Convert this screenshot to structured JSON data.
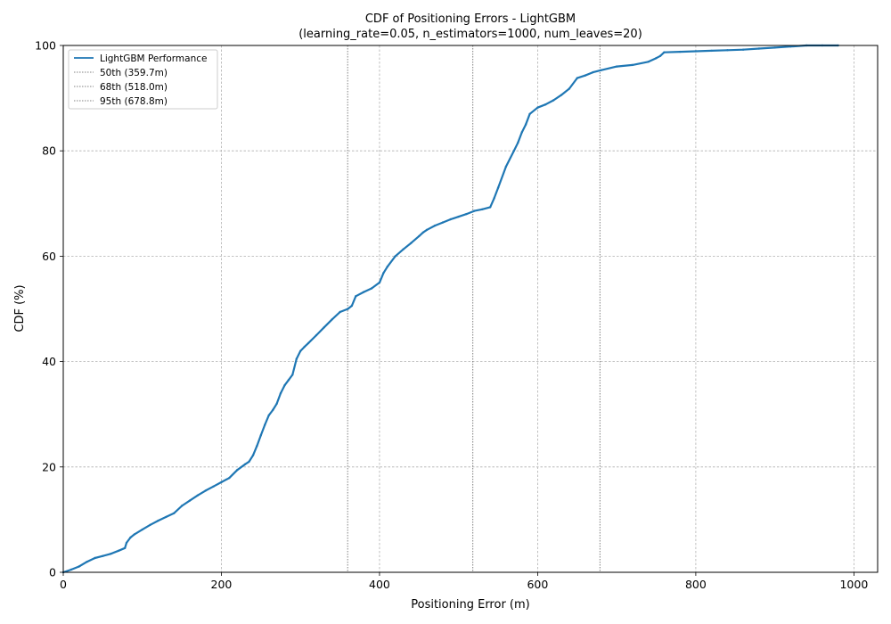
{
  "chart_data": {
    "type": "line",
    "title": "CDF of Positioning Errors - LightGBM",
    "subtitle": "(learning_rate=0.05, n_estimators=1000, num_leaves=20)",
    "xlabel": "Positioning Error (m)",
    "ylabel": "CDF (%)",
    "xlim": [
      0,
      1030
    ],
    "ylim": [
      0,
      100
    ],
    "xticks": [
      0,
      200,
      400,
      600,
      800,
      1000
    ],
    "yticks": [
      0,
      20,
      40,
      60,
      80,
      100
    ],
    "grid": true,
    "legend_position": "top-left",
    "series": [
      {
        "name": "LightGBM Performance",
        "color": "#1f77b4",
        "x": [
          0,
          10,
          20,
          30,
          40,
          50,
          60,
          70,
          78,
          80,
          85,
          90,
          100,
          110,
          120,
          130,
          140,
          150,
          160,
          170,
          180,
          190,
          200,
          210,
          220,
          230,
          235,
          240,
          245,
          250,
          255,
          260,
          265,
          270,
          275,
          280,
          285,
          290,
          295,
          300,
          305,
          310,
          320,
          330,
          340,
          350,
          360,
          365,
          370,
          380,
          390,
          400,
          405,
          410,
          420,
          430,
          440,
          450,
          455,
          460,
          470,
          480,
          490,
          500,
          510,
          520,
          530,
          540,
          545,
          550,
          560,
          570,
          575,
          580,
          585,
          590,
          600,
          610,
          620,
          630,
          640,
          650,
          660,
          670,
          680,
          700,
          720,
          740,
          750,
          755,
          760,
          780,
          800,
          820,
          840,
          860,
          880,
          900,
          920,
          940,
          960,
          980
        ],
        "y": [
          0,
          0.5,
          1.1,
          2.0,
          2.7,
          3.1,
          3.5,
          4.1,
          4.6,
          5.6,
          6.6,
          7.2,
          8.1,
          9.0,
          9.8,
          10.5,
          11.2,
          12.6,
          13.6,
          14.6,
          15.5,
          16.3,
          17.1,
          17.9,
          19.4,
          20.5,
          21.0,
          22.2,
          24.0,
          26.0,
          28.0,
          29.8,
          30.8,
          32.0,
          34.0,
          35.5,
          36.5,
          37.5,
          40.5,
          42.0,
          42.8,
          43.5,
          45.0,
          46.5,
          48.0,
          49.4,
          50.0,
          50.6,
          52.4,
          53.2,
          53.9,
          55.0,
          56.8,
          58.0,
          60.0,
          61.3,
          62.5,
          63.8,
          64.5,
          65.0,
          65.8,
          66.4,
          67.0,
          67.5,
          68.0,
          68.6,
          68.9,
          69.3,
          71.0,
          73.0,
          77.0,
          80.0,
          81.5,
          83.5,
          85.0,
          87.0,
          88.2,
          88.8,
          89.6,
          90.6,
          91.8,
          93.8,
          94.3,
          94.9,
          95.3,
          96.0,
          96.3,
          96.9,
          97.6,
          98.0,
          98.7,
          98.8,
          98.9,
          99.0,
          99.1,
          99.2,
          99.4,
          99.6,
          99.8,
          100,
          100,
          100
        ]
      }
    ],
    "percentiles": [
      {
        "label": "50th (359.7m)",
        "value": 359.7,
        "color": "#808080"
      },
      {
        "label": "68th (518.0m)",
        "value": 518.0,
        "color": "#808080"
      },
      {
        "label": "95th (678.8m)",
        "value": 678.8,
        "color": "#808080"
      }
    ]
  }
}
